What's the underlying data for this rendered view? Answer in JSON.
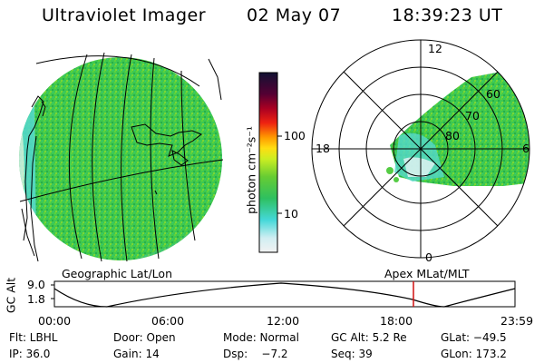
{
  "header": {
    "instrument": "Ultraviolet Imager",
    "date": "02 May 07",
    "time": "18:39:23 UT"
  },
  "colorbar": {
    "unit_label": "photon cm⁻²s⁻¹",
    "tick_labels": [
      "100",
      "10"
    ]
  },
  "polar_plot": {
    "mlt_labels": {
      "top": "12",
      "left": "18",
      "right": "6",
      "bottom": "0"
    },
    "mlat_labels": [
      "60",
      "70",
      "80"
    ]
  },
  "map_labels": {
    "left": "Geographic Lat/Lon",
    "right": "Apex MLat/MLT"
  },
  "altitude_plot": {
    "ylabel": "GC Alt",
    "ytick_labels": [
      "9.0",
      "1.8"
    ],
    "xtick_labels": [
      "00:00",
      "06:00",
      "12:00",
      "18:00",
      "23:59"
    ],
    "marker_color": "#d01010"
  },
  "info": {
    "row1": {
      "filter": "Flt: LBHL",
      "door": "Door: Open",
      "mode": "Mode: Normal",
      "gc_alt": "GC Alt: 5.2 Re",
      "glat": "GLat: −49.5"
    },
    "row2": {
      "ip": "IP: 36.0",
      "gain": "Gain: 14",
      "dsp": "Dsp:    −7.2",
      "seq": "Seq: 39",
      "glon": "GLon: 173.2"
    }
  },
  "colors": {
    "aurora_green": "#44cc55",
    "dark_green": "#22aa33",
    "cyan": "#55ddcc",
    "light": "#cfeef0"
  }
}
